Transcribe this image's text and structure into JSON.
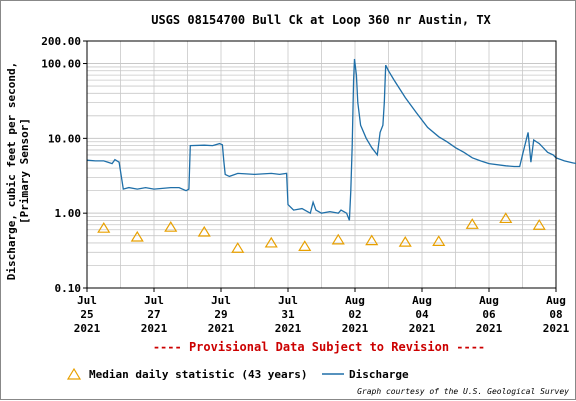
{
  "chart_data": {
    "type": "line",
    "title": "USGS 08154700 Bull Ck at Loop 360 nr Austin, TX",
    "ylabel_line1": "Discharge, cubic feet per second,",
    "ylabel_line2": "[Primary Sensor]",
    "yscale": "log",
    "ylim": [
      0.1,
      200
    ],
    "yticks": [
      {
        "value": 0.1,
        "label": "0.10"
      },
      {
        "value": 1,
        "label": "1.00"
      },
      {
        "value": 10,
        "label": "10.00"
      },
      {
        "value": 100,
        "label": "100.00"
      },
      {
        "value": 200,
        "label": "200.00"
      }
    ],
    "xlim": [
      "2021-07-25",
      "2021-08-08"
    ],
    "xticks": [
      {
        "date": "2021-07-25",
        "month": "Jul",
        "day": "25",
        "year": "2021"
      },
      {
        "date": "2021-07-27",
        "month": "Jul",
        "day": "27",
        "year": "2021"
      },
      {
        "date": "2021-07-29",
        "month": "Jul",
        "day": "29",
        "year": "2021"
      },
      {
        "date": "2021-07-31",
        "month": "Jul",
        "day": "31",
        "year": "2021"
      },
      {
        "date": "2021-08-02",
        "month": "Aug",
        "day": "02",
        "year": "2021"
      },
      {
        "date": "2021-08-04",
        "month": "Aug",
        "day": "04",
        "year": "2021"
      },
      {
        "date": "2021-08-06",
        "month": "Aug",
        "day": "06",
        "year": "2021"
      },
      {
        "date": "2021-08-08",
        "month": "Aug",
        "day": "08",
        "year": "2021"
      }
    ],
    "grid": true,
    "series": [
      {
        "name": "Discharge",
        "color": "#1f6fa8",
        "points": [
          [
            "2021-07-25T00:00",
            5.1
          ],
          [
            "2021-07-25T06:00",
            5.0
          ],
          [
            "2021-07-25T12:00",
            5.0
          ],
          [
            "2021-07-25T18:00",
            4.6
          ],
          [
            "2021-07-25T20:00",
            5.2
          ],
          [
            "2021-07-25T23:00",
            4.8
          ],
          [
            "2021-07-26T02:00",
            2.1
          ],
          [
            "2021-07-26T06:00",
            2.2
          ],
          [
            "2021-07-26T12:00",
            2.1
          ],
          [
            "2021-07-26T18:00",
            2.2
          ],
          [
            "2021-07-27T00:00",
            2.1
          ],
          [
            "2021-07-27T12:00",
            2.2
          ],
          [
            "2021-07-27T18:00",
            2.2
          ],
          [
            "2021-07-27T23:00",
            2.0
          ],
          [
            "2021-07-28T01:00",
            2.1
          ],
          [
            "2021-07-28T02:00",
            8.0
          ],
          [
            "2021-07-28T12:00",
            8.1
          ],
          [
            "2021-07-28T18:00",
            8.0
          ],
          [
            "2021-07-28T23:00",
            8.5
          ],
          [
            "2021-07-29T01:00",
            8.2
          ],
          [
            "2021-07-29T02:00",
            5.0
          ],
          [
            "2021-07-29T03:00",
            3.3
          ],
          [
            "2021-07-29T06:00",
            3.1
          ],
          [
            "2021-07-29T12:00",
            3.4
          ],
          [
            "2021-07-30T00:00",
            3.3
          ],
          [
            "2021-07-30T12:00",
            3.4
          ],
          [
            "2021-07-30T18:00",
            3.3
          ],
          [
            "2021-07-30T23:00",
            3.4
          ],
          [
            "2021-07-31T00:00",
            1.3
          ],
          [
            "2021-07-31T04:00",
            1.1
          ],
          [
            "2021-07-31T10:00",
            1.15
          ],
          [
            "2021-07-31T16:00",
            1.0
          ],
          [
            "2021-07-31T18:00",
            1.4
          ],
          [
            "2021-07-31T20:00",
            1.1
          ],
          [
            "2021-08-01T00:00",
            1.0
          ],
          [
            "2021-08-01T06:00",
            1.05
          ],
          [
            "2021-08-01T12:00",
            1.0
          ],
          [
            "2021-08-01T14:00",
            1.1
          ],
          [
            "2021-08-01T18:00",
            1.0
          ],
          [
            "2021-08-01T20:00",
            0.8
          ],
          [
            "2021-08-01T21:00",
            2.0
          ],
          [
            "2021-08-01T22:00",
            8.0
          ],
          [
            "2021-08-01T23:00",
            60.0
          ],
          [
            "2021-08-01T23:40",
            115.0
          ],
          [
            "2021-08-02T01:00",
            70.0
          ],
          [
            "2021-08-02T02:00",
            30.0
          ],
          [
            "2021-08-02T04:00",
            15.0
          ],
          [
            "2021-08-02T08:00",
            10.0
          ],
          [
            "2021-08-02T12:00",
            7.5
          ],
          [
            "2021-08-02T16:00",
            6.0
          ],
          [
            "2021-08-02T18:00",
            12.0
          ],
          [
            "2021-08-02T20:00",
            15.0
          ],
          [
            "2021-08-02T21:00",
            30.0
          ],
          [
            "2021-08-02T22:00",
            95.0
          ],
          [
            "2021-08-03T00:00",
            80.0
          ],
          [
            "2021-08-03T04:00",
            60.0
          ],
          [
            "2021-08-03T12:00",
            35.0
          ],
          [
            "2021-08-03T20:00",
            22.0
          ],
          [
            "2021-08-04T04:00",
            14.0
          ],
          [
            "2021-08-04T12:00",
            10.5
          ],
          [
            "2021-08-04T18:00",
            9.0
          ],
          [
            "2021-08-05T00:00",
            7.5
          ],
          [
            "2021-08-05T06:00",
            6.5
          ],
          [
            "2021-08-05T12:00",
            5.5
          ],
          [
            "2021-08-05T18:00",
            5.0
          ],
          [
            "2021-08-06T00:00",
            4.6
          ],
          [
            "2021-08-06T12:00",
            4.3
          ],
          [
            "2021-08-06T18:00",
            4.2
          ],
          [
            "2021-08-06T22:00",
            4.2
          ],
          [
            "2021-08-07T00:00",
            6.0
          ],
          [
            "2021-08-07T04:00",
            12.0
          ],
          [
            "2021-08-07T06:00",
            4.8
          ],
          [
            "2021-08-07T08:00",
            9.5
          ],
          [
            "2021-08-07T12:00",
            8.5
          ],
          [
            "2021-08-07T18:00",
            6.5
          ],
          [
            "2021-08-07T22:00",
            6.0
          ],
          [
            "2021-08-08T00:00",
            5.5
          ],
          [
            "2021-08-08T06:00",
            5.0
          ],
          [
            "2021-08-08T12:00",
            4.7
          ],
          [
            "2021-08-08T18:00",
            4.5
          ]
        ]
      },
      {
        "name": "Median daily statistic (43 years)",
        "color": "#e8a000",
        "marker": "triangle",
        "points": [
          [
            "2021-07-25T12:00",
            0.63
          ],
          [
            "2021-07-26T12:00",
            0.48
          ],
          [
            "2021-07-27T12:00",
            0.65
          ],
          [
            "2021-07-28T12:00",
            0.56
          ],
          [
            "2021-07-29T12:00",
            0.34
          ],
          [
            "2021-07-30T12:00",
            0.4
          ],
          [
            "2021-07-31T12:00",
            0.36
          ],
          [
            "2021-08-01T12:00",
            0.44
          ],
          [
            "2021-08-02T12:00",
            0.43
          ],
          [
            "2021-08-03T12:00",
            0.41
          ],
          [
            "2021-08-04T12:00",
            0.42
          ],
          [
            "2021-08-05T12:00",
            0.71
          ],
          [
            "2021-08-06T12:00",
            0.85
          ],
          [
            "2021-08-07T12:00",
            0.69
          ]
        ]
      }
    ],
    "provisional_note": "---- Provisional Data Subject to Revision ----",
    "legend": {
      "median_label": "Median daily statistic (43 years)",
      "discharge_label": "Discharge"
    },
    "credit": "Graph courtesy of the U.S. Geological Survey",
    "colors": {
      "grid": "#c8c8c8",
      "axis": "#000000",
      "discharge": "#1f6fa8",
      "median": "#e8a000",
      "provisional": "#cc0000"
    }
  }
}
